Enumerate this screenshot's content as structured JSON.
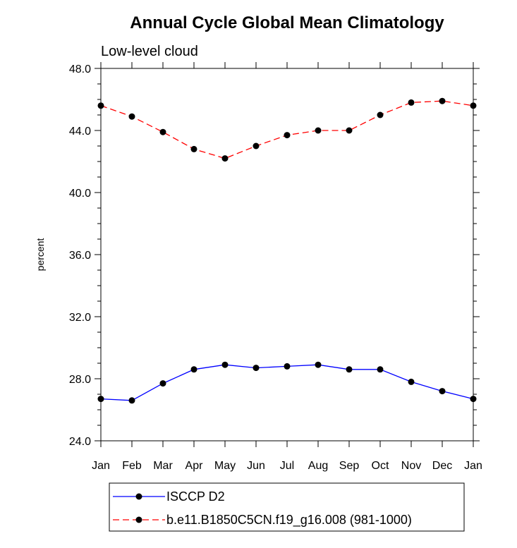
{
  "chart_data": {
    "type": "line",
    "title": "Annual Cycle Global Mean Climatology",
    "subtitle": "Low-level cloud",
    "xlabel": "",
    "ylabel": "percent",
    "categories": [
      "Jan",
      "Feb",
      "Mar",
      "Apr",
      "May",
      "Jun",
      "Jul",
      "Aug",
      "Sep",
      "Oct",
      "Nov",
      "Dec",
      "Jan"
    ],
    "ylim": [
      24.0,
      48.0
    ],
    "yticks": [
      "24.0",
      "28.0",
      "32.0",
      "36.0",
      "40.0",
      "44.0",
      "48.0"
    ],
    "grid": false,
    "legend_position": "bottom",
    "series": [
      {
        "name": "ISCCP D2",
        "color": "#0000ff",
        "dash": "solid",
        "values": [
          26.7,
          26.6,
          27.7,
          28.6,
          28.9,
          28.7,
          28.8,
          28.9,
          28.6,
          28.6,
          27.8,
          27.2,
          26.7
        ]
      },
      {
        "name": "b.e11.B1850C5CN.f19_g16.008 (981-1000)",
        "color": "#ff0000",
        "dash": "dashed",
        "values": [
          45.6,
          44.9,
          43.9,
          42.8,
          42.2,
          43.0,
          43.7,
          44.0,
          44.0,
          45.0,
          45.8,
          45.9,
          45.6
        ]
      }
    ]
  }
}
